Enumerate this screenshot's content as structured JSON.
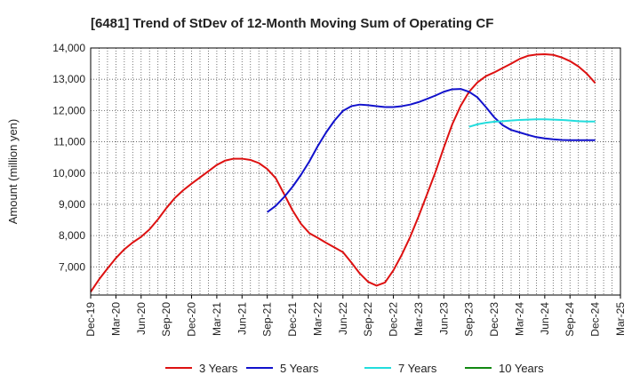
{
  "chart_data": {
    "type": "line",
    "title": "[6481]  Trend of StDev of 12-Month Moving Sum of Operating CF",
    "ylabel": "Amount (million yen)",
    "xlabel": "",
    "ylim": [
      6100,
      14000
    ],
    "yticks": [
      7000,
      8000,
      9000,
      10000,
      11000,
      12000,
      13000,
      14000
    ],
    "ytick_labels": [
      "7,000",
      "8,000",
      "9,000",
      "10,000",
      "11,000",
      "12,000",
      "13,000",
      "14,000"
    ],
    "xlim": [
      "2019-12",
      "2025-03"
    ],
    "xtick_labels": [
      "Dec-19",
      "Mar-20",
      "Jun-20",
      "Sep-20",
      "Dec-20",
      "Mar-21",
      "Jun-21",
      "Sep-21",
      "Dec-21",
      "Mar-22",
      "Jun-22",
      "Sep-22",
      "Dec-22",
      "Mar-23",
      "Jun-23",
      "Sep-23",
      "Dec-23",
      "Mar-24",
      "Jun-24",
      "Sep-24",
      "Dec-24",
      "Mar-25"
    ],
    "grid": true,
    "legend_position": "bottom",
    "series": [
      {
        "name": "3 Years",
        "color": "#dd1111",
        "x": [
          "2019-12",
          "2020-01",
          "2020-02",
          "2020-03",
          "2020-04",
          "2020-05",
          "2020-06",
          "2020-07",
          "2020-08",
          "2020-09",
          "2020-10",
          "2020-11",
          "2020-12",
          "2021-01",
          "2021-02",
          "2021-03",
          "2021-04",
          "2021-05",
          "2021-06",
          "2021-07",
          "2021-08",
          "2021-09",
          "2021-10",
          "2021-11",
          "2021-12",
          "2022-01",
          "2022-02",
          "2022-03",
          "2022-04",
          "2022-05",
          "2022-06",
          "2022-07",
          "2022-08",
          "2022-09",
          "2022-10",
          "2022-11",
          "2022-12",
          "2023-01",
          "2023-02",
          "2023-03",
          "2023-04",
          "2023-05",
          "2023-06",
          "2023-07",
          "2023-08",
          "2023-09",
          "2023-10",
          "2023-11",
          "2023-12",
          "2024-01",
          "2024-02",
          "2024-03",
          "2024-04",
          "2024-05",
          "2024-06",
          "2024-07",
          "2024-08",
          "2024-09",
          "2024-10",
          "2024-11",
          "2024-12"
        ],
        "values": [
          6200,
          6600,
          6950,
          7280,
          7560,
          7780,
          7960,
          8200,
          8520,
          8880,
          9200,
          9450,
          9660,
          9860,
          10060,
          10260,
          10400,
          10460,
          10460,
          10420,
          10320,
          10130,
          9840,
          9330,
          8810,
          8380,
          8080,
          7930,
          7770,
          7620,
          7470,
          7140,
          6790,
          6520,
          6400,
          6500,
          6890,
          7390,
          7960,
          8620,
          9320,
          10030,
          10820,
          11560,
          12150,
          12600,
          12900,
          13100,
          13220,
          13360,
          13500,
          13650,
          13750,
          13790,
          13800,
          13780,
          13700,
          13580,
          13410,
          13180,
          12880
        ]
      },
      {
        "name": "5 Years",
        "color": "#1111cc",
        "x": [
          "2021-09",
          "2021-10",
          "2021-11",
          "2021-12",
          "2022-01",
          "2022-02",
          "2022-03",
          "2022-04",
          "2022-05",
          "2022-06",
          "2022-07",
          "2022-08",
          "2022-09",
          "2022-10",
          "2022-11",
          "2022-12",
          "2023-01",
          "2023-02",
          "2023-03",
          "2023-04",
          "2023-05",
          "2023-06",
          "2023-07",
          "2023-08",
          "2023-09",
          "2023-10",
          "2023-11",
          "2023-12",
          "2024-01",
          "2024-02",
          "2024-03",
          "2024-04",
          "2024-05",
          "2024-06",
          "2024-07",
          "2024-08",
          "2024-09",
          "2024-10",
          "2024-11",
          "2024-12"
        ],
        "values": [
          8750,
          8950,
          9230,
          9560,
          9940,
          10370,
          10860,
          11300,
          11680,
          11990,
          12140,
          12190,
          12170,
          12140,
          12110,
          12110,
          12140,
          12190,
          12270,
          12370,
          12480,
          12600,
          12680,
          12690,
          12600,
          12420,
          12110,
          11780,
          11530,
          11380,
          11300,
          11220,
          11150,
          11110,
          11080,
          11060,
          11050,
          11050,
          11050,
          11050
        ]
      },
      {
        "name": "7 Years",
        "color": "#22dddd",
        "x": [
          "2023-09",
          "2023-10",
          "2023-11",
          "2023-12",
          "2024-01",
          "2024-02",
          "2024-03",
          "2024-04",
          "2024-05",
          "2024-06",
          "2024-07",
          "2024-08",
          "2024-09",
          "2024-10",
          "2024-11",
          "2024-12"
        ],
        "values": [
          11480,
          11560,
          11610,
          11640,
          11660,
          11680,
          11700,
          11710,
          11720,
          11720,
          11710,
          11700,
          11680,
          11660,
          11650,
          11650
        ]
      },
      {
        "name": "10 Years",
        "color": "#118811",
        "x": [],
        "values": []
      }
    ]
  }
}
